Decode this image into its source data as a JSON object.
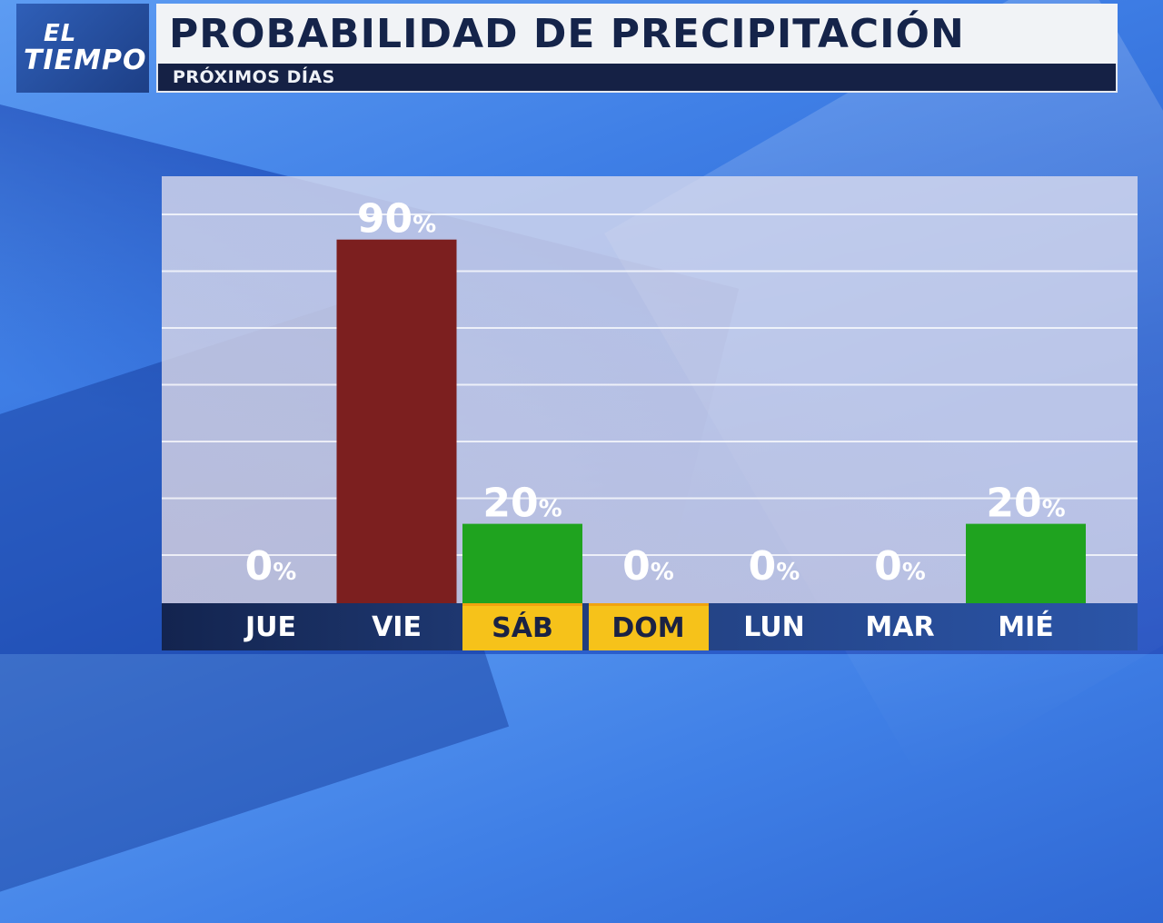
{
  "header": {
    "logo_line1": "EL",
    "logo_line2": "TIEMPO",
    "title": "PROBABILIDAD DE PRECIPITACIÓN",
    "subtitle": "PRÓXIMOS DÍAS"
  },
  "colors": {
    "high": "#7c1f1f",
    "low": "#1fa31f",
    "weekend_label": "#f6c21a",
    "value_label": "#ffffff"
  },
  "chart_data": {
    "type": "bar",
    "categories": [
      "JUE",
      "VIE",
      "SÁB",
      "DOM",
      "LUN",
      "MAR",
      "MIÉ"
    ],
    "values": [
      0,
      90,
      20,
      0,
      0,
      0,
      20
    ],
    "value_suffix": "%",
    "weekend": [
      false,
      false,
      true,
      true,
      false,
      false,
      false
    ],
    "bar_colors": [
      "none",
      "#7c1f1f",
      "#1fa31f",
      "none",
      "none",
      "none",
      "#1fa31f"
    ],
    "ylim": [
      0,
      100
    ],
    "grid": true
  }
}
